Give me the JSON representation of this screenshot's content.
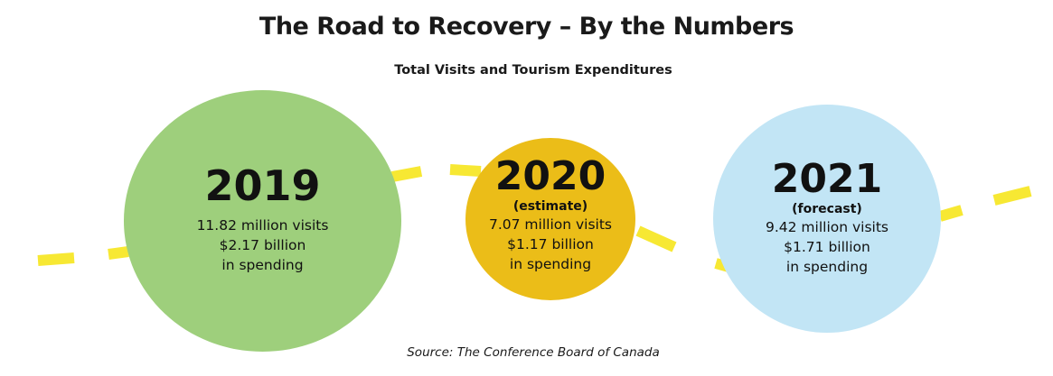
{
  "title": "The Road to Recovery – By the Numbers",
  "subtitle": "Total Visits and Tourism Expenditures",
  "source": "Source: The Conference Board of Canada",
  "colors": {
    "road": "#f7e833",
    "circle_2019": "#9ecf7c",
    "circle_2020": "#ebbd18",
    "circle_2021": "#c2e5f5"
  },
  "circles": [
    {
      "year": "2019",
      "note": "",
      "visits": "11.82 million visits",
      "spending": "$2.17 billion",
      "spending_suffix": "in spending"
    },
    {
      "year": "2020",
      "note": "(estimate)",
      "visits": "7.07 million visits",
      "spending": "$1.17 billion",
      "spending_suffix": "in spending"
    },
    {
      "year": "2021",
      "note": "(forecast)",
      "visits": "9.42 million visits",
      "spending": "$1.71 billion",
      "spending_suffix": "in spending"
    }
  ]
}
